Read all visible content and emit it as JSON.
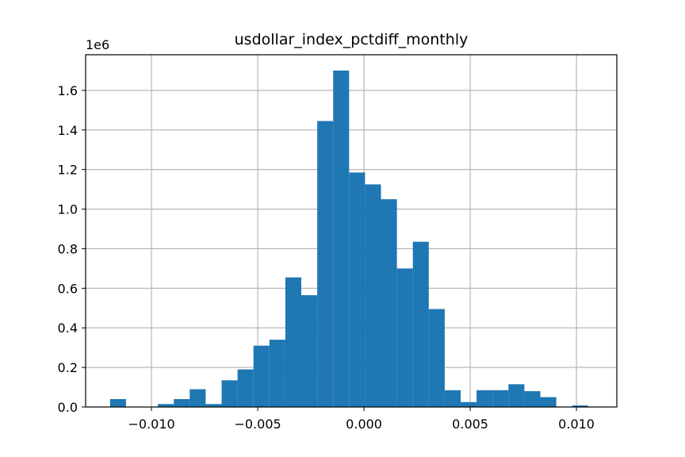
{
  "chart_data": {
    "type": "bar",
    "title": "usdollar_index_pctdiff_monthly",
    "xlabel": "",
    "ylabel": "",
    "y_offset_label": "1e6",
    "y_scale": 1000000,
    "xlim": [
      -0.0131,
      0.0119
    ],
    "ylim": [
      0,
      1.78
    ],
    "grid": true,
    "bar_color": "#1f77b4",
    "x_ticks": [
      -0.01,
      -0.005,
      0.0,
      0.005,
      0.01
    ],
    "x_tick_labels": [
      "−0.010",
      "−0.005",
      "0.000",
      "0.005",
      "0.010"
    ],
    "y_ticks": [
      0.0,
      0.2,
      0.4,
      0.6,
      0.8,
      1.0,
      1.2,
      1.4,
      1.6
    ],
    "y_tick_labels": [
      "0.0",
      "0.2",
      "0.4",
      "0.6",
      "0.8",
      "1.0",
      "1.2",
      "1.4",
      "1.6"
    ],
    "bin_start": -0.01195,
    "bin_width": 0.00075,
    "values": [
      0.04,
      0.0,
      0.0,
      0.015,
      0.04,
      0.09,
      0.015,
      0.135,
      0.19,
      0.31,
      0.34,
      0.655,
      0.565,
      1.445,
      1.7,
      1.185,
      1.125,
      1.05,
      0.7,
      0.835,
      0.495,
      0.085,
      0.025,
      0.085,
      0.085,
      0.115,
      0.08,
      0.05,
      0.0,
      0.008
    ]
  }
}
